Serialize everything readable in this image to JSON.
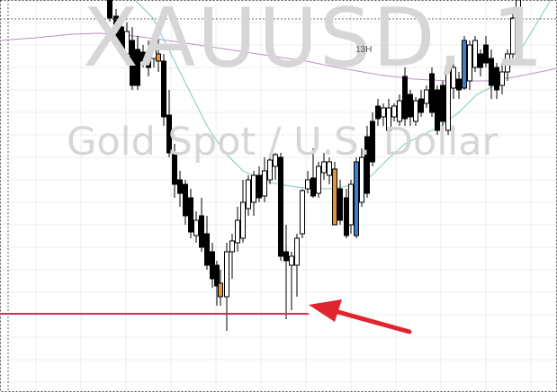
{
  "watermark": {
    "symbol": "XAUUSD, 1",
    "description": "Gold Spot / U.S. Dollar"
  },
  "session_label": "13H",
  "colors": {
    "background": "#ffffff",
    "grid": "#ececec",
    "candle_border": "#000000",
    "bull_body": "#ffffff",
    "bear_body": "#000000",
    "highlight_orange": "#e0923c",
    "highlight_blue": "#3d7fc9",
    "ma_fast": "#7fc7c0",
    "ma_slow": "#c08fc6",
    "support_line": "#d8304f",
    "arrow": "#e0252f",
    "watermark": "#d6d6d6"
  },
  "annotations": {
    "support_level": "horizontal line at session low",
    "arrow": "red arrow pointing at support line"
  }
}
